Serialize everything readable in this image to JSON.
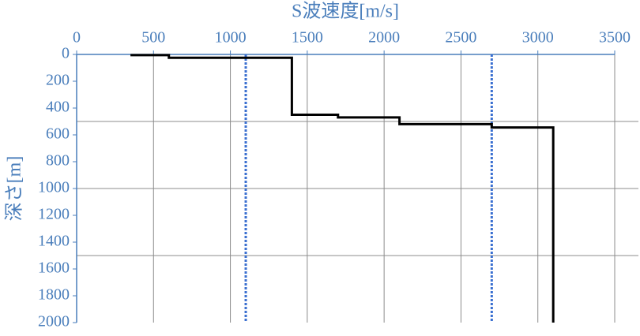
{
  "chart_data": {
    "type": "line",
    "x_label": "S波速度[m/s]",
    "y_label": "深さ[m]",
    "xlim": [
      0,
      3500
    ],
    "xticks": [
      0,
      500,
      1000,
      1500,
      2000,
      2500,
      3000,
      3500
    ],
    "ylim": [
      0,
      2000
    ],
    "yticks": [
      0,
      200,
      400,
      600,
      800,
      1000,
      1200,
      1400,
      1600,
      1800,
      2000
    ],
    "y_inverted": true,
    "x_axis_position": "top",
    "x_grid": true,
    "y_grid": [
      500,
      1000,
      1500
    ],
    "series": [
      {
        "color": "#000000",
        "x": [
          350,
          600,
          600,
          1400,
          1400,
          1700,
          1700,
          2100,
          2100,
          2700,
          2700,
          3100,
          3100
        ],
        "values": [
          5,
          5,
          25,
          25,
          450,
          450,
          470,
          470,
          520,
          520,
          545,
          545,
          2000
        ]
      }
    ],
    "vlines": [
      {
        "x": 1100,
        "color": "#3a6fd0"
      },
      {
        "x": 2700,
        "color": "#3a6fd0"
      }
    ]
  }
}
